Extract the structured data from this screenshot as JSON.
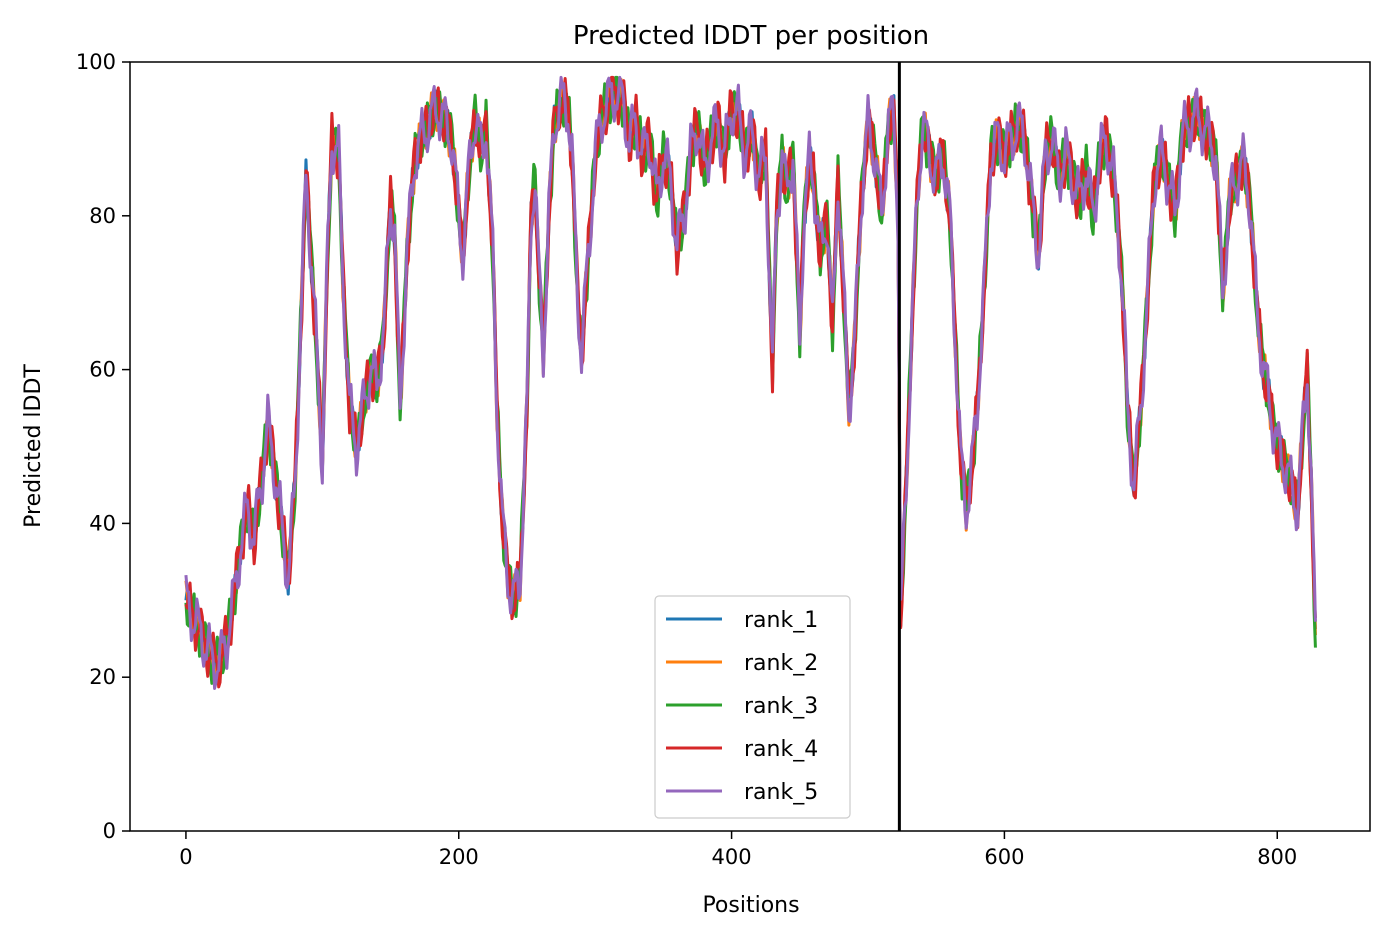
{
  "chart_data": {
    "type": "line",
    "title": "Predicted lDDT per position",
    "xlabel": "Positions",
    "ylabel": "Predicted lDDT",
    "xlim": [
      -41,
      868
    ],
    "ylim": [
      0,
      100
    ],
    "xticks": [
      0,
      200,
      400,
      600,
      800
    ],
    "yticks": [
      0,
      20,
      40,
      60,
      80,
      100
    ],
    "grid": false,
    "legend_position": "lower center",
    "vline": {
      "x": 523,
      "color": "#000000"
    },
    "base": [
      [
        0,
        30
      ],
      [
        5,
        28
      ],
      [
        10,
        26
      ],
      [
        15,
        24
      ],
      [
        20,
        22
      ],
      [
        25,
        22
      ],
      [
        30,
        25
      ],
      [
        35,
        30
      ],
      [
        40,
        37
      ],
      [
        45,
        42
      ],
      [
        50,
        38
      ],
      [
        55,
        45
      ],
      [
        60,
        53
      ],
      [
        65,
        47
      ],
      [
        70,
        40
      ],
      [
        75,
        33
      ],
      [
        80,
        45
      ],
      [
        85,
        70
      ],
      [
        88,
        85
      ],
      [
        90,
        80
      ],
      [
        95,
        65
      ],
      [
        100,
        48
      ],
      [
        103,
        70
      ],
      [
        107,
        90
      ],
      [
        112,
        88
      ],
      [
        115,
        72
      ],
      [
        120,
        55
      ],
      [
        125,
        50
      ],
      [
        130,
        55
      ],
      [
        135,
        60
      ],
      [
        140,
        58
      ],
      [
        145,
        65
      ],
      [
        150,
        82
      ],
      [
        153,
        78
      ],
      [
        157,
        55
      ],
      [
        162,
        75
      ],
      [
        168,
        88
      ],
      [
        175,
        91
      ],
      [
        180,
        93
      ],
      [
        185,
        94
      ],
      [
        190,
        92
      ],
      [
        195,
        90
      ],
      [
        200,
        80
      ],
      [
        203,
        75
      ],
      [
        207,
        85
      ],
      [
        212,
        93
      ],
      [
        217,
        88
      ],
      [
        220,
        92
      ],
      [
        225,
        75
      ],
      [
        228,
        55
      ],
      [
        232,
        40
      ],
      [
        236,
        33
      ],
      [
        240,
        30
      ],
      [
        245,
        33
      ],
      [
        250,
        55
      ],
      [
        253,
        80
      ],
      [
        256,
        85
      ],
      [
        258,
        75
      ],
      [
        262,
        62
      ],
      [
        266,
        80
      ],
      [
        270,
        92
      ],
      [
        275,
        95
      ],
      [
        280,
        94
      ],
      [
        283,
        88
      ],
      [
        287,
        70
      ],
      [
        290,
        62
      ],
      [
        293,
        70
      ],
      [
        297,
        80
      ],
      [
        300,
        88
      ],
      [
        305,
        93
      ],
      [
        310,
        95
      ],
      [
        315,
        96
      ],
      [
        320,
        95
      ],
      [
        325,
        90
      ],
      [
        330,
        92
      ],
      [
        335,
        88
      ],
      [
        340,
        90
      ],
      [
        345,
        82
      ],
      [
        350,
        88
      ],
      [
        355,
        85
      ],
      [
        360,
        76
      ],
      [
        365,
        80
      ],
      [
        370,
        88
      ],
      [
        375,
        92
      ],
      [
        380,
        86
      ],
      [
        385,
        90
      ],
      [
        390,
        92
      ],
      [
        395,
        88
      ],
      [
        400,
        94
      ],
      [
        405,
        93
      ],
      [
        410,
        88
      ],
      [
        415,
        91
      ],
      [
        420,
        85
      ],
      [
        425,
        88
      ],
      [
        430,
        60
      ],
      [
        433,
        80
      ],
      [
        437,
        88
      ],
      [
        440,
        83
      ],
      [
        445,
        88
      ],
      [
        450,
        64
      ],
      [
        453,
        80
      ],
      [
        457,
        87
      ],
      [
        460,
        85
      ],
      [
        465,
        75
      ],
      [
        470,
        80
      ],
      [
        474,
        65
      ],
      [
        478,
        85
      ],
      [
        482,
        70
      ],
      [
        486,
        55
      ],
      [
        490,
        63
      ],
      [
        495,
        82
      ],
      [
        500,
        92
      ],
      [
        505,
        88
      ],
      [
        510,
        80
      ],
      [
        515,
        92
      ],
      [
        519,
        93
      ],
      [
        522,
        80
      ],
      [
        524,
        28
      ],
      [
        528,
        45
      ],
      [
        532,
        65
      ],
      [
        536,
        82
      ],
      [
        540,
        92
      ],
      [
        545,
        88
      ],
      [
        550,
        85
      ],
      [
        555,
        88
      ],
      [
        560,
        80
      ],
      [
        565,
        60
      ],
      [
        568,
        48
      ],
      [
        572,
        42
      ],
      [
        576,
        47
      ],
      [
        580,
        55
      ],
      [
        585,
        70
      ],
      [
        590,
        88
      ],
      [
        595,
        90
      ],
      [
        600,
        88
      ],
      [
        605,
        90
      ],
      [
        610,
        92
      ],
      [
        615,
        90
      ],
      [
        620,
        82
      ],
      [
        625,
        75
      ],
      [
        630,
        88
      ],
      [
        635,
        90
      ],
      [
        640,
        85
      ],
      [
        645,
        88
      ],
      [
        650,
        85
      ],
      [
        655,
        82
      ],
      [
        660,
        86
      ],
      [
        665,
        80
      ],
      [
        670,
        88
      ],
      [
        675,
        90
      ],
      [
        680,
        85
      ],
      [
        685,
        75
      ],
      [
        688,
        65
      ],
      [
        690,
        55
      ],
      [
        695,
        45
      ],
      [
        700,
        55
      ],
      [
        705,
        70
      ],
      [
        710,
        85
      ],
      [
        715,
        88
      ],
      [
        720,
        85
      ],
      [
        725,
        80
      ],
      [
        730,
        90
      ],
      [
        735,
        92
      ],
      [
        740,
        93
      ],
      [
        745,
        92
      ],
      [
        750,
        90
      ],
      [
        755,
        88
      ],
      [
        760,
        70
      ],
      [
        765,
        82
      ],
      [
        770,
        85
      ],
      [
        775,
        87
      ],
      [
        780,
        82
      ],
      [
        785,
        68
      ],
      [
        790,
        60
      ],
      [
        795,
        55
      ],
      [
        800,
        50
      ],
      [
        805,
        48
      ],
      [
        810,
        45
      ],
      [
        815,
        42
      ],
      [
        818,
        50
      ],
      [
        822,
        60
      ],
      [
        825,
        45
      ],
      [
        828,
        25
      ]
    ],
    "series": [
      {
        "name": "rank_1",
        "color": "#1f77b4"
      },
      {
        "name": "rank_2",
        "color": "#ff7f0e"
      },
      {
        "name": "rank_3",
        "color": "#2ca02c"
      },
      {
        "name": "rank_4",
        "color": "#d62728"
      },
      {
        "name": "rank_5",
        "color": "#9467bd"
      }
    ]
  }
}
